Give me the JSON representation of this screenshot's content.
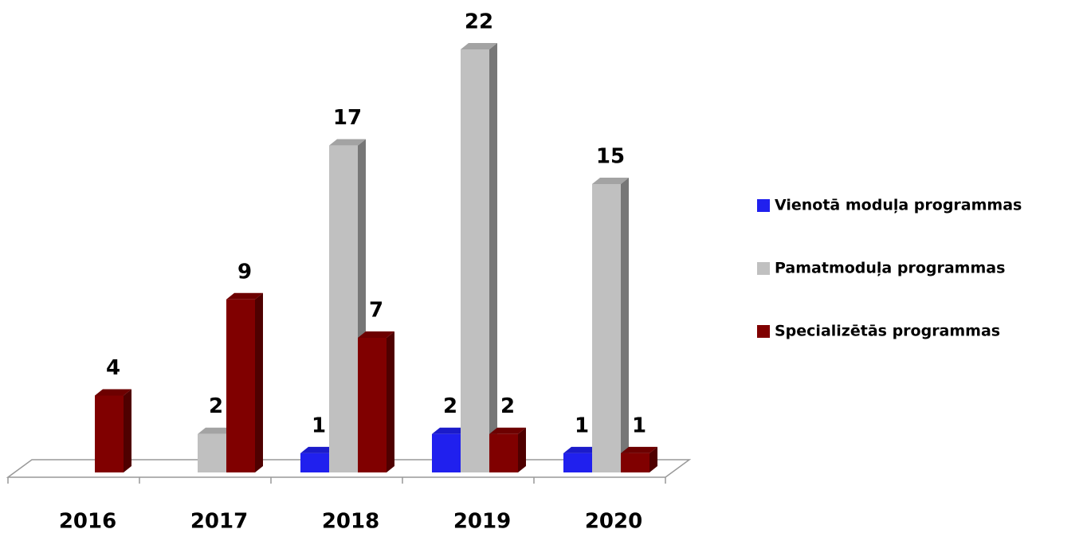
{
  "chart_data": {
    "type": "bar3d",
    "categories": [
      "2016",
      "2017",
      "2018",
      "2019",
      "2020"
    ],
    "series": [
      {
        "name": "Vienotā moduļa programmas",
        "color": "#2020ee",
        "values": [
          null,
          null,
          1,
          2,
          1
        ]
      },
      {
        "name": "Pamatmoduļa programmas",
        "color": "#c0c0c0",
        "values": [
          null,
          2,
          17,
          22,
          15
        ]
      },
      {
        "name": "Specializētās programmas",
        "color": "#800000",
        "values": [
          4,
          9,
          7,
          2,
          1
        ]
      }
    ],
    "legend": "right"
  }
}
